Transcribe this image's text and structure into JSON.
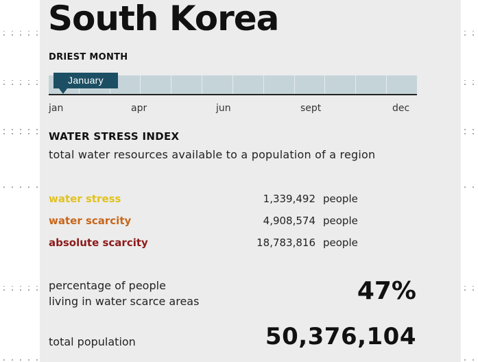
{
  "country": "South Korea",
  "driest_month": {
    "label": "DRIEST MONTH",
    "selected": "January",
    "month_count": 12,
    "axis_labels": [
      "jan",
      "apr",
      "jun",
      "sept",
      "dec"
    ]
  },
  "water_stress": {
    "label": "WATER STRESS INDEX",
    "description": "total water resources available to a population of a region",
    "rows": [
      {
        "name": "water stress",
        "value": "1,339,492",
        "unit": "people",
        "color": "#e2c21d"
      },
      {
        "name": "water scarcity",
        "value": "4,908,574",
        "unit": "people",
        "color": "#c8661a"
      },
      {
        "name": "absolute scarcity",
        "value": "18,783,816",
        "unit": "people",
        "color": "#8e1a1a"
      }
    ]
  },
  "percentage": {
    "label_line1": "percentage of people",
    "label_line2": "living in water scarce areas",
    "value": "47%"
  },
  "population": {
    "label": "total population",
    "value": "50,376,104"
  }
}
